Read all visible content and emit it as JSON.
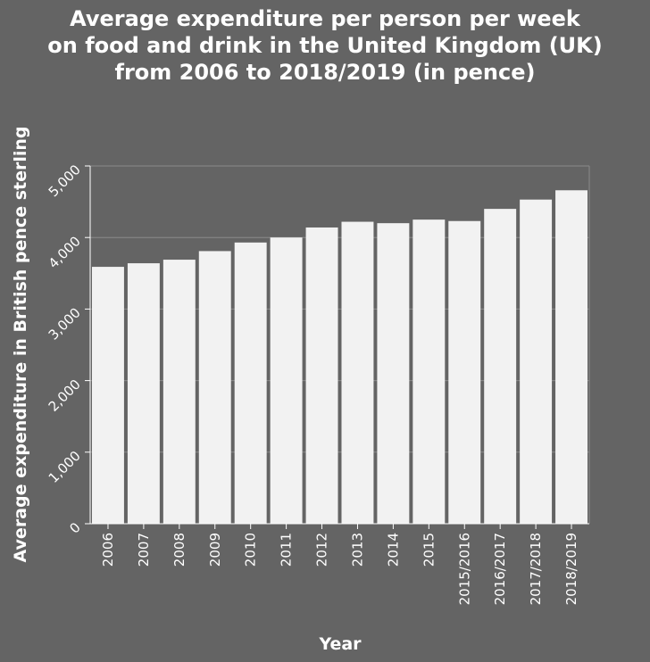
{
  "chart_data": {
    "type": "bar",
    "title": "Average expenditure per person per week\non food and drink in the United Kingdom (UK)\nfrom 2006 to 2018/2019 (in pence)",
    "xlabel": "Year",
    "ylabel": "Average expenditure in British pence sterling",
    "categories": [
      "2006",
      "2007",
      "2008",
      "2009",
      "2010",
      "2011",
      "2012",
      "2013",
      "2014",
      "2015",
      "2015/2016",
      "2016/2017",
      "2017/2018",
      "2018/2019"
    ],
    "values": [
      3590,
      3640,
      3690,
      3810,
      3930,
      4000,
      4140,
      4220,
      4200,
      4250,
      4230,
      4400,
      4530,
      4660
    ],
    "ylim": [
      0,
      5000
    ],
    "yticks": [
      0,
      1000,
      2000,
      3000,
      4000,
      5000
    ],
    "ytick_labels": [
      "0",
      "1,000",
      "2,000",
      "3,000",
      "4,000",
      "5,000"
    ],
    "grid": true,
    "colors": {
      "background": "#646464",
      "bar": "#f2f2f2",
      "grid": "#8a8a8a"
    }
  }
}
